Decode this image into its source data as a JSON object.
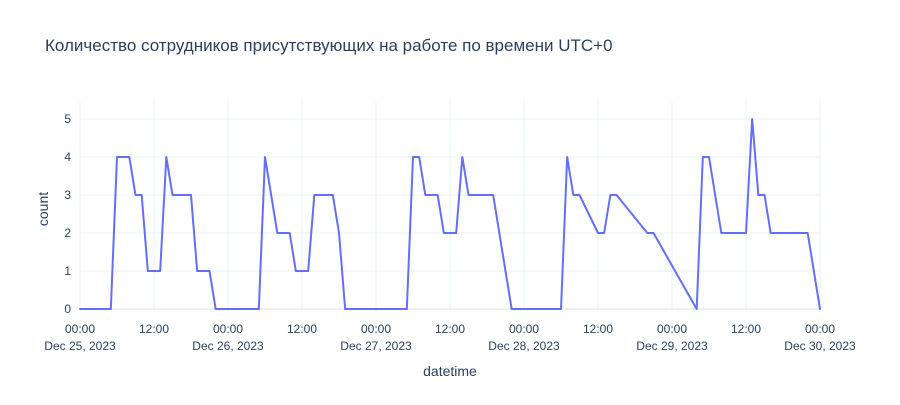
{
  "chart_data": {
    "type": "line",
    "title": "Количество сотрудников присутствующих на работе по времени UTC+0",
    "xlabel": "datetime",
    "ylabel": "count",
    "xlim": [
      "2023-12-25 00:00",
      "2023-12-30 00:00"
    ],
    "ylim": [
      0,
      5.5
    ],
    "grid": true,
    "line_color": "#636efa",
    "y_ticks": [
      0,
      1,
      2,
      3,
      4,
      5
    ],
    "x_ticks": [
      {
        "t": "2023-12-25 00:00",
        "time": "00:00",
        "date": "Dec 25, 2023"
      },
      {
        "t": "2023-12-25 12:00",
        "time": "12:00",
        "date": ""
      },
      {
        "t": "2023-12-26 00:00",
        "time": "00:00",
        "date": "Dec 26, 2023"
      },
      {
        "t": "2023-12-26 12:00",
        "time": "12:00",
        "date": ""
      },
      {
        "t": "2023-12-27 00:00",
        "time": "00:00",
        "date": "Dec 27, 2023"
      },
      {
        "t": "2023-12-27 12:00",
        "time": "12:00",
        "date": ""
      },
      {
        "t": "2023-12-28 00:00",
        "time": "00:00",
        "date": "Dec 28, 2023"
      },
      {
        "t": "2023-12-28 12:00",
        "time": "12:00",
        "date": ""
      },
      {
        "t": "2023-12-29 00:00",
        "time": "00:00",
        "date": "Dec 29, 2023"
      },
      {
        "t": "2023-12-29 12:00",
        "time": "12:00",
        "date": ""
      },
      {
        "t": "2023-12-30 00:00",
        "time": "00:00",
        "date": "Dec 30, 2023"
      }
    ],
    "series": [
      {
        "x": [
          "2023-12-25 00:00",
          "2023-12-25 05:00",
          "2023-12-25 06:00",
          "2023-12-25 08:00",
          "2023-12-25 09:00",
          "2023-12-25 10:00",
          "2023-12-25 11:00",
          "2023-12-25 13:00",
          "2023-12-25 14:00",
          "2023-12-25 15:00",
          "2023-12-25 18:00",
          "2023-12-25 19:00",
          "2023-12-25 21:00",
          "2023-12-25 22:00",
          "2023-12-26 05:00",
          "2023-12-26 06:00",
          "2023-12-26 08:00",
          "2023-12-26 10:00",
          "2023-12-26 11:00",
          "2023-12-26 13:00",
          "2023-12-26 14:00",
          "2023-12-26 17:00",
          "2023-12-26 18:00",
          "2023-12-26 19:00",
          "2023-12-27 05:00",
          "2023-12-27 06:00",
          "2023-12-27 07:00",
          "2023-12-27 08:00",
          "2023-12-27 10:00",
          "2023-12-27 11:00",
          "2023-12-27 13:00",
          "2023-12-27 14:00",
          "2023-12-27 15:00",
          "2023-12-27 19:00",
          "2023-12-27 22:00",
          "2023-12-28 06:00",
          "2023-12-28 07:00",
          "2023-12-28 08:00",
          "2023-12-28 09:00",
          "2023-12-28 12:00",
          "2023-12-28 13:00",
          "2023-12-28 14:00",
          "2023-12-28 15:00",
          "2023-12-28 20:00",
          "2023-12-28 21:00",
          "2023-12-29 04:00",
          "2023-12-29 05:00",
          "2023-12-29 06:00",
          "2023-12-29 08:00",
          "2023-12-29 12:00",
          "2023-12-29 13:00",
          "2023-12-29 14:00",
          "2023-12-29 15:00",
          "2023-12-29 16:00",
          "2023-12-29 17:00",
          "2023-12-29 18:00",
          "2023-12-29 22:00",
          "2023-12-30 00:00"
        ],
        "y": [
          0,
          0,
          4,
          4,
          3,
          3,
          1,
          1,
          4,
          3,
          3,
          1,
          1,
          0,
          0,
          4,
          2,
          2,
          1,
          1,
          3,
          3,
          2,
          0,
          0,
          4,
          4,
          3,
          3,
          2,
          2,
          4,
          3,
          3,
          0,
          0,
          4,
          3,
          3,
          2,
          2,
          3,
          3,
          2,
          2,
          0,
          4,
          4,
          2,
          2,
          5,
          3,
          3,
          2,
          2,
          2,
          2,
          0
        ]
      }
    ]
  }
}
